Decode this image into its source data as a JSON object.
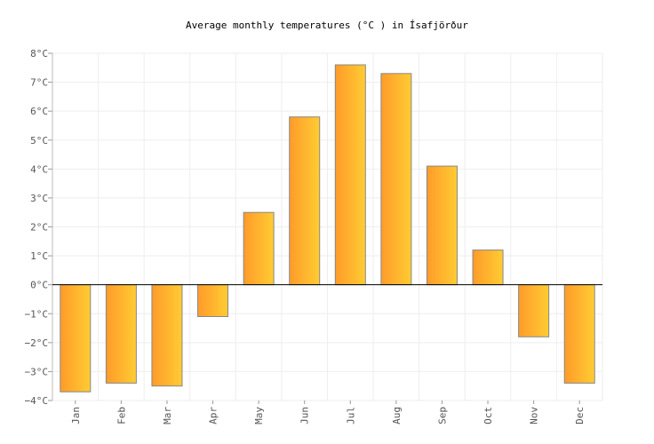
{
  "chart_data": {
    "type": "bar",
    "title": "Average monthly temperatures (°C ) in Ísafjörður",
    "xlabel": "",
    "ylabel": "",
    "categories": [
      "Jan",
      "Feb",
      "Mar",
      "Apr",
      "May",
      "Jun",
      "Jul",
      "Aug",
      "Sep",
      "Oct",
      "Nov",
      "Dec"
    ],
    "values": [
      -3.7,
      -3.4,
      -3.5,
      -1.1,
      2.5,
      5.8,
      7.6,
      7.3,
      4.1,
      1.2,
      -1.8,
      -3.4
    ],
    "ylim": [
      -4,
      8
    ],
    "yticks": [
      8,
      7,
      6,
      5,
      4,
      3,
      2,
      1,
      0,
      -1,
      -2,
      -3,
      -4
    ],
    "ytick_labels": [
      "8°C",
      "7°C",
      "6°C",
      "5°C",
      "4°C",
      "3°C",
      "2°C",
      "1°C",
      "0°C",
      "−1°C",
      "−2°C",
      "−3°C",
      "−4°C"
    ],
    "grid": true,
    "legend": "none",
    "colors": {
      "bar_gradient_start": "#ff9b2a",
      "bar_gradient_end": "#ffcc33",
      "bar_stroke": "#888888",
      "grid": "#eeeeee",
      "axis": "#000000",
      "text": "#555555"
    }
  }
}
